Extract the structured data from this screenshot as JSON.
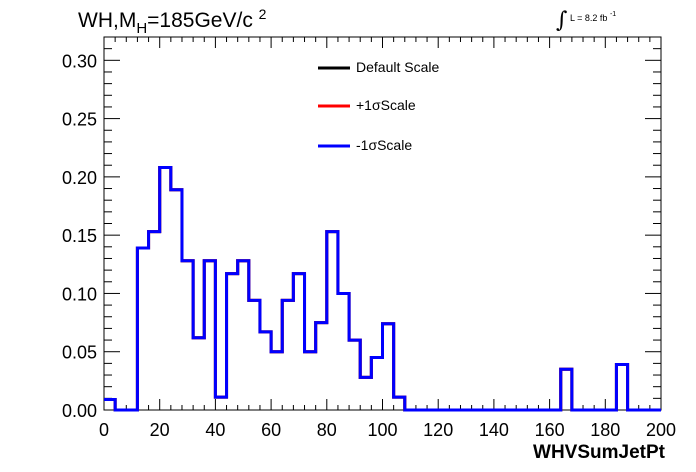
{
  "title": {
    "main": "WH,M",
    "sub": "H",
    "value": "=185GeV/c",
    "sup": "2"
  },
  "luminosity": {
    "prefix": "L = 8.2 fb",
    "exponent": "-1"
  },
  "legend": [
    {
      "label": "Default Scale",
      "color": "#000000"
    },
    {
      "label": "+1σScale",
      "color": "#ff0000"
    },
    {
      "label": "-1σScale",
      "color": "#0000ff"
    }
  ],
  "chart_data": {
    "type": "histogram",
    "xlabel": "WHVSumJetPt",
    "ylabel": "",
    "xlim": [
      0,
      200
    ],
    "ylim": [
      0,
      0.32
    ],
    "xticks": [
      "0",
      "20",
      "40",
      "60",
      "80",
      "100",
      "120",
      "140",
      "160",
      "180",
      "200"
    ],
    "yticks": [
      "0.00",
      "0.05",
      "0.10",
      "0.15",
      "0.20",
      "0.25",
      "0.30"
    ],
    "bin_edges": [
      0,
      4,
      8,
      12,
      16,
      20,
      24,
      28,
      32,
      36,
      40,
      44,
      48,
      52,
      56,
      60,
      64,
      68,
      72,
      76,
      80,
      84,
      88,
      92,
      96,
      100,
      104,
      108,
      112,
      116,
      120,
      124,
      128,
      132,
      136,
      140,
      144,
      148,
      152,
      156,
      160,
      164,
      168,
      172,
      176,
      180,
      184,
      188,
      192,
      196,
      200
    ],
    "series": [
      {
        "name": "Default Scale",
        "color": "#000000",
        "values": [
          0.009,
          0,
          0,
          0.139,
          0.153,
          0.208,
          0.189,
          0.128,
          0.062,
          0.128,
          0.011,
          0.117,
          0.128,
          0.094,
          0.067,
          0.05,
          0.094,
          0.117,
          0.05,
          0.075,
          0.153,
          0.1,
          0.06,
          0.028,
          0.045,
          0.074,
          0.011,
          0,
          0,
          0,
          0,
          0,
          0,
          0,
          0,
          0,
          0,
          0,
          0,
          0,
          0,
          0.035,
          0,
          0,
          0,
          0,
          0.039,
          0,
          0,
          0
        ]
      },
      {
        "name": "+1σScale",
        "color": "#ff0000",
        "values": [
          0.009,
          0,
          0,
          0.139,
          0.153,
          0.208,
          0.189,
          0.128,
          0.062,
          0.128,
          0.011,
          0.117,
          0.128,
          0.094,
          0.067,
          0.05,
          0.094,
          0.117,
          0.05,
          0.075,
          0.153,
          0.1,
          0.06,
          0.028,
          0.045,
          0.074,
          0.011,
          0,
          0,
          0,
          0,
          0,
          0,
          0,
          0,
          0,
          0,
          0,
          0,
          0,
          0,
          0.035,
          0,
          0,
          0,
          0,
          0.039,
          0,
          0,
          0
        ]
      },
      {
        "name": "-1σScale",
        "color": "#0000ff",
        "values": [
          0.009,
          0,
          0,
          0.139,
          0.153,
          0.208,
          0.189,
          0.128,
          0.062,
          0.128,
          0.011,
          0.117,
          0.128,
          0.094,
          0.067,
          0.05,
          0.094,
          0.117,
          0.05,
          0.075,
          0.153,
          0.1,
          0.06,
          0.028,
          0.045,
          0.074,
          0.011,
          0,
          0,
          0,
          0,
          0,
          0,
          0,
          0,
          0,
          0,
          0,
          0,
          0,
          0,
          0.035,
          0,
          0,
          0,
          0,
          0.039,
          0,
          0,
          0
        ]
      }
    ],
    "legend_position": "top-center",
    "grid": false
  }
}
